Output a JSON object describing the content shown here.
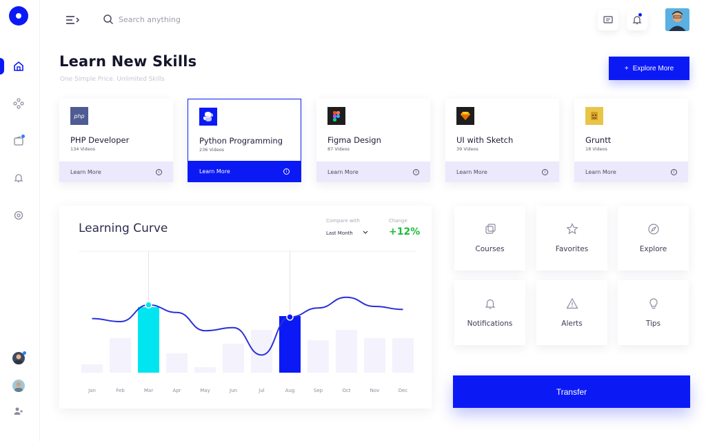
{
  "header": {
    "search_placeholder": "Search anything"
  },
  "page": {
    "title": "Learn New Skills",
    "subtitle": "One Simple Price. Unlimited Skills",
    "explore_button": "Explore More",
    "explore_prefix": "+"
  },
  "courses": [
    {
      "title": "PHP Developer",
      "count": "134 Videos",
      "cta": "Learn More",
      "icon": "php-icon",
      "icon_text": "php",
      "icon_bg": "#4f5b93"
    },
    {
      "title": "Python Programming",
      "count": "236 Videos",
      "cta": "Learn More",
      "icon": "python-icon",
      "icon_bg": "#0b1af5",
      "active": true
    },
    {
      "title": "Figma Design",
      "count": "87 Videos",
      "cta": "Learn More",
      "icon": "figma-icon",
      "icon_bg": "#1e1e1e"
    },
    {
      "title": "UI with Sketch",
      "count": "39 Videos",
      "cta": "Learn More",
      "icon": "sketch-icon",
      "icon_bg": "#1e1e1e"
    },
    {
      "title": "Gruntt",
      "count": "18 Videos",
      "cta": "Learn More",
      "icon": "grunt-icon",
      "icon_bg": "#e8c547"
    }
  ],
  "learning": {
    "title": "Learning Curve",
    "compare_label": "Compare with",
    "compare_value": "Last Month",
    "change_label": "Change",
    "change_value": "+12%"
  },
  "chart_data": {
    "type": "bar",
    "categories": [
      "Jan",
      "Feb",
      "Mar",
      "Apr",
      "May",
      "Jun",
      "Jul",
      "Aug",
      "Sep",
      "Oct",
      "Nov",
      "Dec"
    ],
    "values": [
      12,
      50,
      95,
      28,
      8,
      42,
      62,
      82,
      47,
      62,
      50,
      50
    ],
    "highlight": [
      "Mar",
      "Aug"
    ],
    "highlight_colors": [
      "#00e5f0",
      "#0b1af5"
    ],
    "line_series": [
      62,
      60,
      71,
      66,
      54,
      56,
      38,
      63,
      69,
      76,
      70,
      68
    ],
    "ylim": [
      0,
      100
    ],
    "title": "",
    "xlabel": "",
    "ylabel": ""
  },
  "tiles": [
    {
      "label": "Courses",
      "icon": "copy-icon"
    },
    {
      "label": "Favorites",
      "icon": "star-icon"
    },
    {
      "label": "Explore",
      "icon": "compass-icon"
    },
    {
      "label": "Notifications",
      "icon": "bell-icon"
    },
    {
      "label": "Alerts",
      "icon": "warning-icon"
    },
    {
      "label": "Tips",
      "icon": "lightbulb-icon"
    }
  ],
  "transfer_button": "Transfer",
  "colors": {
    "accent": "#0b1af5",
    "cyan": "#00e5f0",
    "positive": "#1dbb3a",
    "card_footer": "#ebe9fb"
  }
}
